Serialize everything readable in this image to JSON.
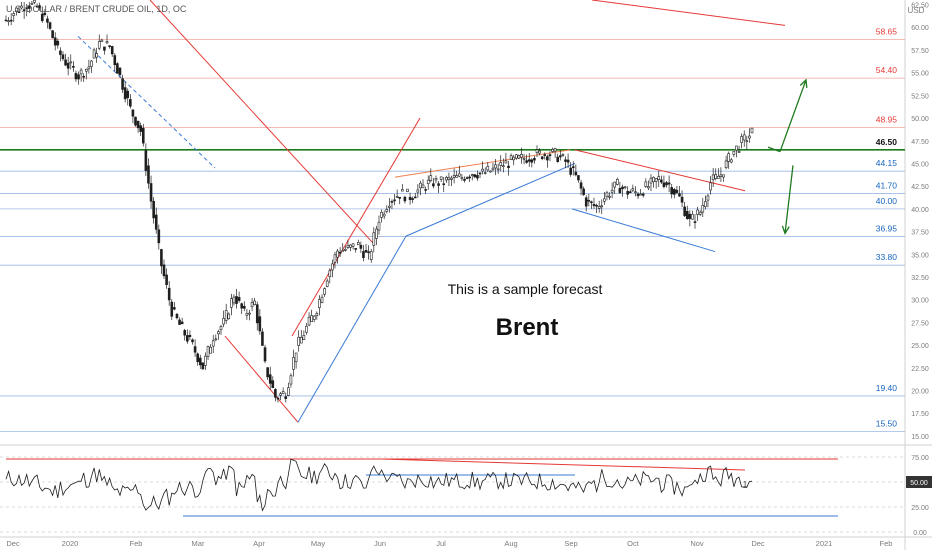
{
  "symbol_title": "U.S. DOLLAR / BRENT CRUDE OIL, 1D, OC",
  "currency": "USD",
  "annotation": {
    "line1": "This is a sample forecast",
    "line2": "Brent"
  },
  "colors": {
    "background": "#ffffff",
    "resistance": "#e53935",
    "support": "#1565c0",
    "key_level": "#1b7a1b",
    "trend_red": "#e53935",
    "trend_blue": "#3a7bd5",
    "wedge_orange": "#f08050",
    "candle": "#1e1e1e",
    "arrow": "#1f7a1f",
    "axis_text": "#7b7b7b"
  },
  "chart_data": [
    {
      "type": "candlestick",
      "title": "U.S. DOLLAR / BRENT CRUDE OIL, 1D, OC",
      "ylim": [
        14.0,
        63.0
      ],
      "y_ticks": [
        "15.00",
        "17.50",
        "20.00",
        "22.50",
        "25.00",
        "27.50",
        "30.00",
        "32.50",
        "35.00",
        "37.50",
        "40.00",
        "42.50",
        "45.00",
        "47.50",
        "50.00",
        "52.50",
        "55.00",
        "57.50",
        "60.00",
        "62.50"
      ],
      "x_labels": [
        "Dec",
        "2020",
        "Feb",
        "Mar",
        "Apr",
        "May",
        "Jun",
        "Jul",
        "Aug",
        "Sep",
        "Oct",
        "Nov",
        "Dec",
        "2021",
        "Feb"
      ],
      "series_close": [
        60.8,
        61.9,
        62.6,
        62.2,
        60.4,
        57.4,
        55.8,
        54.7,
        55.7,
        58.2,
        57.9,
        54.6,
        51.0,
        48.6,
        40.9,
        33.8,
        28.8,
        26.7,
        24.9,
        22.6,
        26.0,
        27.4,
        30.6,
        28.4,
        29.7,
        22.7,
        19.3,
        19.8,
        24.6,
        26.9,
        29.1,
        32.6,
        35.4,
        35.6,
        36.0,
        34.6,
        39.0,
        41.0,
        41.7,
        41.4,
        42.2,
        43.0,
        42.9,
        43.3,
        43.5,
        44.0,
        43.9,
        44.3,
        44.9,
        45.3,
        45.6,
        45.9,
        46.1,
        46.0,
        45.2,
        43.5,
        40.8,
        40.2,
        41.6,
        42.6,
        41.9,
        41.8,
        42.5,
        43.3,
        42.7,
        41.2,
        38.6,
        39.7,
        42.9,
        43.8,
        46.0,
        47.3,
        48.4
      ],
      "resistance_levels": [
        {
          "label": "58.65",
          "value": 58.65,
          "kind": "resistance"
        },
        {
          "label": "54.40",
          "value": 54.4,
          "kind": "resistance"
        },
        {
          "label": "48.95",
          "value": 48.95,
          "kind": "resistance"
        },
        {
          "label": "46.50",
          "value": 46.5,
          "kind": "key"
        }
      ],
      "support_levels": [
        {
          "label": "44.15",
          "value": 44.15,
          "kind": "support"
        },
        {
          "label": "41.70",
          "value": 41.7,
          "kind": "support"
        },
        {
          "label": "40.00",
          "value": 40.0,
          "kind": "support"
        },
        {
          "label": "36.95",
          "value": 36.95,
          "kind": "support"
        },
        {
          "label": "33.80",
          "value": 33.8,
          "kind": "support"
        },
        {
          "label": "19.40",
          "value": 19.4,
          "kind": "support"
        },
        {
          "label": "15.50",
          "value": 15.5,
          "kind": "support"
        }
      ]
    },
    {
      "type": "line",
      "name": "oscillator",
      "ylim": [
        0,
        80
      ],
      "y_ticks": [
        "0.00",
        "25.00",
        "50.00",
        "75.00"
      ],
      "current_value": "50.00",
      "marker": "1",
      "upper_line": 73,
      "lower_line": 16
    }
  ]
}
